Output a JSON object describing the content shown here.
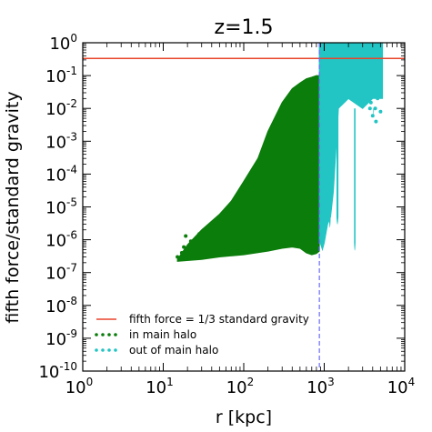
{
  "chart_data": {
    "type": "scatter",
    "title": "z=1.5",
    "xlabel": "r [kpc]",
    "ylabel": "fifth force/standard gravity",
    "x_scale": "log",
    "y_scale": "log",
    "xlim": [
      1,
      10000
    ],
    "ylim": [
      1e-10,
      1
    ],
    "grid": false,
    "legend_position": "lower-left",
    "x_ticks": [
      {
        "base": "10",
        "exp": "0",
        "value": 1
      },
      {
        "base": "10",
        "exp": "1",
        "value": 10
      },
      {
        "base": "10",
        "exp": "2",
        "value": 100
      },
      {
        "base": "10",
        "exp": "3",
        "value": 1000
      },
      {
        "base": "10",
        "exp": "4",
        "value": 10000
      }
    ],
    "y_ticks": [
      {
        "base": "10",
        "exp": "-10",
        "value": 1e-10
      },
      {
        "base": "10",
        "exp": "-9",
        "value": 1e-09
      },
      {
        "base": "10",
        "exp": "-8",
        "value": 1e-08
      },
      {
        "base": "10",
        "exp": "-7",
        "value": 1e-07
      },
      {
        "base": "10",
        "exp": "-6",
        "value": 1e-06
      },
      {
        "base": "10",
        "exp": "-5",
        "value": 1e-05
      },
      {
        "base": "10",
        "exp": "-4",
        "value": 0.0001
      },
      {
        "base": "10",
        "exp": "-3",
        "value": 0.001
      },
      {
        "base": "10",
        "exp": "-2",
        "value": 0.01
      },
      {
        "base": "10",
        "exp": "-1",
        "value": 0.1
      },
      {
        "base": "10",
        "exp": "0",
        "value": 1
      }
    ],
    "reference_lines": [
      {
        "orientation": "horizontal",
        "value": 0.3333,
        "color": "#e8442a",
        "style": "solid",
        "label": "fifth force = 1/3 standard gravity"
      },
      {
        "orientation": "vertical",
        "value": 870,
        "color": "#6b6bff",
        "style": "dashed",
        "label": ""
      }
    ],
    "series": [
      {
        "name": "in main halo",
        "color": "#0a7d0a",
        "upper_envelope": [
          [
            15,
            2.5e-07
          ],
          [
            20,
            7e-07
          ],
          [
            30,
            2e-06
          ],
          [
            50,
            6e-06
          ],
          [
            70,
            1.5e-05
          ],
          [
            100,
            6e-05
          ],
          [
            150,
            0.0003
          ],
          [
            200,
            0.002
          ],
          [
            300,
            0.015
          ],
          [
            400,
            0.04
          ],
          [
            500,
            0.06
          ],
          [
            600,
            0.08
          ],
          [
            700,
            0.09
          ],
          [
            800,
            0.1
          ],
          [
            870,
            0.1
          ]
        ],
        "lower_envelope": [
          [
            15,
            2.2e-07
          ],
          [
            30,
            2.5e-07
          ],
          [
            50,
            3e-07
          ],
          [
            100,
            3.5e-07
          ],
          [
            200,
            4.5e-07
          ],
          [
            300,
            5.5e-07
          ],
          [
            400,
            6e-07
          ],
          [
            500,
            5.5e-07
          ],
          [
            600,
            4e-07
          ],
          [
            700,
            3.5e-07
          ],
          [
            800,
            3.8e-07
          ],
          [
            870,
            4.5e-07
          ]
        ],
        "outliers": [
          [
            15,
            3e-07
          ],
          [
            17,
            4e-07
          ],
          [
            18,
            6e-07
          ],
          [
            20,
            5e-07
          ],
          [
            22,
            9e-07
          ],
          [
            25,
            1e-06
          ],
          [
            19,
            1.3e-06
          ],
          [
            28,
            1.5e-06
          ],
          [
            32,
            2e-06
          ],
          [
            40,
            3e-06
          ],
          [
            45,
            2.5e-06
          ],
          [
            60,
            4e-06
          ],
          [
            24,
            3.2e-07
          ],
          [
            35,
            4.5e-07
          ]
        ]
      },
      {
        "name": "out of main halo",
        "color": "#22c4c4",
        "upper_envelope": [
          [
            870,
            1
          ],
          [
            1000,
            1
          ],
          [
            1500,
            1
          ],
          [
            2000,
            1
          ],
          [
            3000,
            1
          ],
          [
            4000,
            1
          ],
          [
            5300,
            1
          ]
        ],
        "lower_envelope": [
          [
            870,
            1e-06
          ],
          [
            950,
            5e-07
          ],
          [
            1000,
            8e-07
          ],
          [
            1100,
            3e-06
          ],
          [
            1200,
            5e-06
          ],
          [
            1300,
            3e-05
          ],
          [
            1500,
            0.01
          ],
          [
            2000,
            0.02
          ],
          [
            3000,
            0.01
          ],
          [
            4000,
            0.02
          ],
          [
            5300,
            0.02
          ]
        ],
        "spikes": [
          {
            "x": [
              1150,
              1200
            ],
            "y_min": 2e-06
          },
          {
            "x": [
              1420,
              1500
            ],
            "y_min": 2.5e-06
          },
          {
            "x": [
              2350,
              2450
            ],
            "y_min": 4e-07
          },
          {
            "x": [
              4050,
              4150
            ],
            "y_min": 0.005
          }
        ],
        "outliers": [
          [
            3800,
            0.015
          ],
          [
            4000,
            0.006
          ],
          [
            4300,
            0.01
          ],
          [
            4600,
            0.02
          ],
          [
            5000,
            0.008
          ],
          [
            4400,
            0.004
          ],
          [
            3700,
            0.01
          ]
        ]
      }
    ]
  }
}
